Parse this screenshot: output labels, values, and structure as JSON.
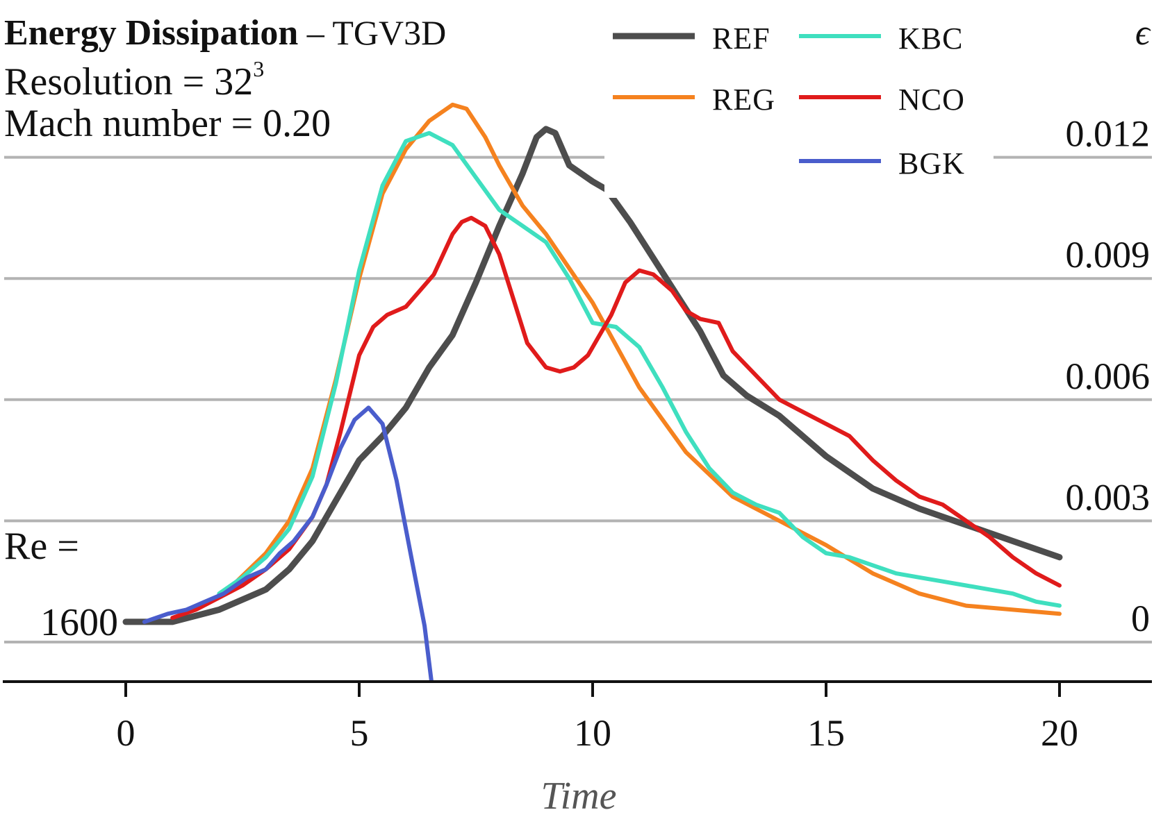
{
  "header": {
    "title_bold": "Energy Dissipation",
    "title_rest": " – TGV3D",
    "resolution_label": "Resolution = 32",
    "resolution_exp": "3",
    "mach_label": "Mach number = 0.20",
    "re_label": "Re =",
    "re_value": "1600"
  },
  "chart_data": {
    "type": "line",
    "xlabel": "Time",
    "ylabel": "ϵ",
    "xlim": [
      -2.6,
      22
    ],
    "ylim": [
      -0.001,
      0.0132
    ],
    "x_ticks": [
      0,
      5,
      10,
      15,
      20
    ],
    "y_ticks": [
      0,
      0.003,
      0.006,
      0.009,
      0.012
    ],
    "y_tick_labels": [
      "0",
      "0.003",
      "0.006",
      "0.009",
      "0.012"
    ],
    "grid": "horizontal",
    "legend_position": "top-right",
    "series": [
      {
        "name": "REF",
        "color": "#4d4d4d",
        "width": 9,
        "x": [
          0,
          1,
          2,
          3,
          3.5,
          4,
          4.5,
          5,
          5.5,
          6,
          6.5,
          7,
          7.5,
          8,
          8.5,
          8.8,
          9,
          9.2,
          9.5,
          10,
          10.3,
          10.8,
          11.3,
          11.8,
          12.3,
          12.8,
          13.3,
          14,
          15,
          16,
          17,
          18,
          19,
          20
        ],
        "y": [
          0.0005,
          0.0005,
          0.0008,
          0.0013,
          0.0018,
          0.0025,
          0.0035,
          0.0045,
          0.0051,
          0.0058,
          0.0068,
          0.0076,
          0.0089,
          0.0103,
          0.0116,
          0.0125,
          0.0127,
          0.0126,
          0.0118,
          0.0114,
          0.0112,
          0.0104,
          0.0095,
          0.0086,
          0.0077,
          0.0066,
          0.0061,
          0.0056,
          0.0046,
          0.0038,
          0.0033,
          0.0029,
          0.0025,
          0.0021
        ]
      },
      {
        "name": "REG",
        "color": "#f5821f",
        "width": 6,
        "x": [
          2.2,
          3,
          3.5,
          4,
          4.5,
          5,
          5.5,
          6,
          6.5,
          7,
          7.3,
          7.7,
          8,
          8.5,
          9,
          10,
          11,
          12,
          13,
          14,
          15,
          16,
          17,
          18,
          19,
          20
        ],
        "y": [
          0.0013,
          0.0022,
          0.003,
          0.0043,
          0.0065,
          0.009,
          0.0111,
          0.0122,
          0.0129,
          0.0133,
          0.0132,
          0.0125,
          0.0118,
          0.0108,
          0.0101,
          0.0084,
          0.0063,
          0.0047,
          0.0036,
          0.003,
          0.0024,
          0.0017,
          0.0012,
          0.0009,
          0.0008,
          0.0007
        ]
      },
      {
        "name": "KBC",
        "color": "#3fdfbf",
        "width": 6,
        "x": [
          2,
          2.5,
          3,
          3.5,
          4,
          4.5,
          5,
          5.5,
          6,
          6.5,
          7,
          7.5,
          8,
          8.5,
          9,
          9.5,
          10,
          10.5,
          11,
          11.5,
          12,
          12.5,
          13,
          13.5,
          14,
          14.5,
          15,
          15.5,
          16,
          16.5,
          17,
          17.5,
          18,
          18.5,
          19,
          19.5,
          20
        ],
        "y": [
          0.0012,
          0.0016,
          0.0021,
          0.0028,
          0.0041,
          0.0064,
          0.0092,
          0.0113,
          0.0124,
          0.0126,
          0.0123,
          0.0115,
          0.0107,
          0.0103,
          0.0099,
          0.009,
          0.0079,
          0.0078,
          0.0073,
          0.0063,
          0.0052,
          0.0043,
          0.0037,
          0.0034,
          0.0032,
          0.0026,
          0.0022,
          0.0021,
          0.0019,
          0.0017,
          0.0016,
          0.0015,
          0.0014,
          0.0013,
          0.0012,
          0.001,
          0.0009
        ]
      },
      {
        "name": "NCO",
        "color": "#e01b1b",
        "width": 6,
        "x": [
          1,
          1.5,
          2,
          2.5,
          3,
          3.5,
          4,
          4.3,
          4.6,
          5,
          5.3,
          5.6,
          6,
          6.3,
          6.6,
          7,
          7.2,
          7.4,
          7.7,
          8,
          8.3,
          8.6,
          9,
          9.3,
          9.6,
          9.9,
          10.1,
          10.4,
          10.7,
          11,
          11.3,
          11.7,
          12,
          12.3,
          12.7,
          13,
          13.5,
          14,
          14.5,
          15,
          15.5,
          16,
          16.5,
          17,
          17.5,
          18,
          18.5,
          19,
          19.5,
          20
        ],
        "y": [
          0.0006,
          0.0008,
          0.0011,
          0.0014,
          0.0018,
          0.0023,
          0.0031,
          0.0039,
          0.0052,
          0.0071,
          0.0078,
          0.0081,
          0.0083,
          0.0087,
          0.0091,
          0.0101,
          0.0104,
          0.0105,
          0.0103,
          0.0096,
          0.0085,
          0.0074,
          0.0068,
          0.0067,
          0.0068,
          0.0071,
          0.0075,
          0.0081,
          0.0089,
          0.0092,
          0.0091,
          0.0087,
          0.0082,
          0.008,
          0.0079,
          0.0072,
          0.0066,
          0.006,
          0.0057,
          0.0054,
          0.0051,
          0.0045,
          0.004,
          0.0036,
          0.0034,
          0.003,
          0.0026,
          0.0021,
          0.0017,
          0.0014
        ]
      },
      {
        "name": "BGK",
        "color": "#4a5dcc",
        "width": 6,
        "x": [
          0.4,
          0.9,
          1.3,
          1.7,
          2.1,
          2.6,
          3,
          3.3,
          3.6,
          4,
          4.3,
          4.6,
          4.9,
          5.2,
          5.5,
          5.8,
          6.1,
          6.4,
          6.55
        ],
        "y": [
          0.0005,
          0.0007,
          0.0008,
          0.001,
          0.0012,
          0.0016,
          0.0018,
          0.0022,
          0.0025,
          0.0031,
          0.0039,
          0.0048,
          0.0055,
          0.0058,
          0.0054,
          0.004,
          0.0022,
          0.0004,
          -0.001
        ]
      }
    ]
  }
}
